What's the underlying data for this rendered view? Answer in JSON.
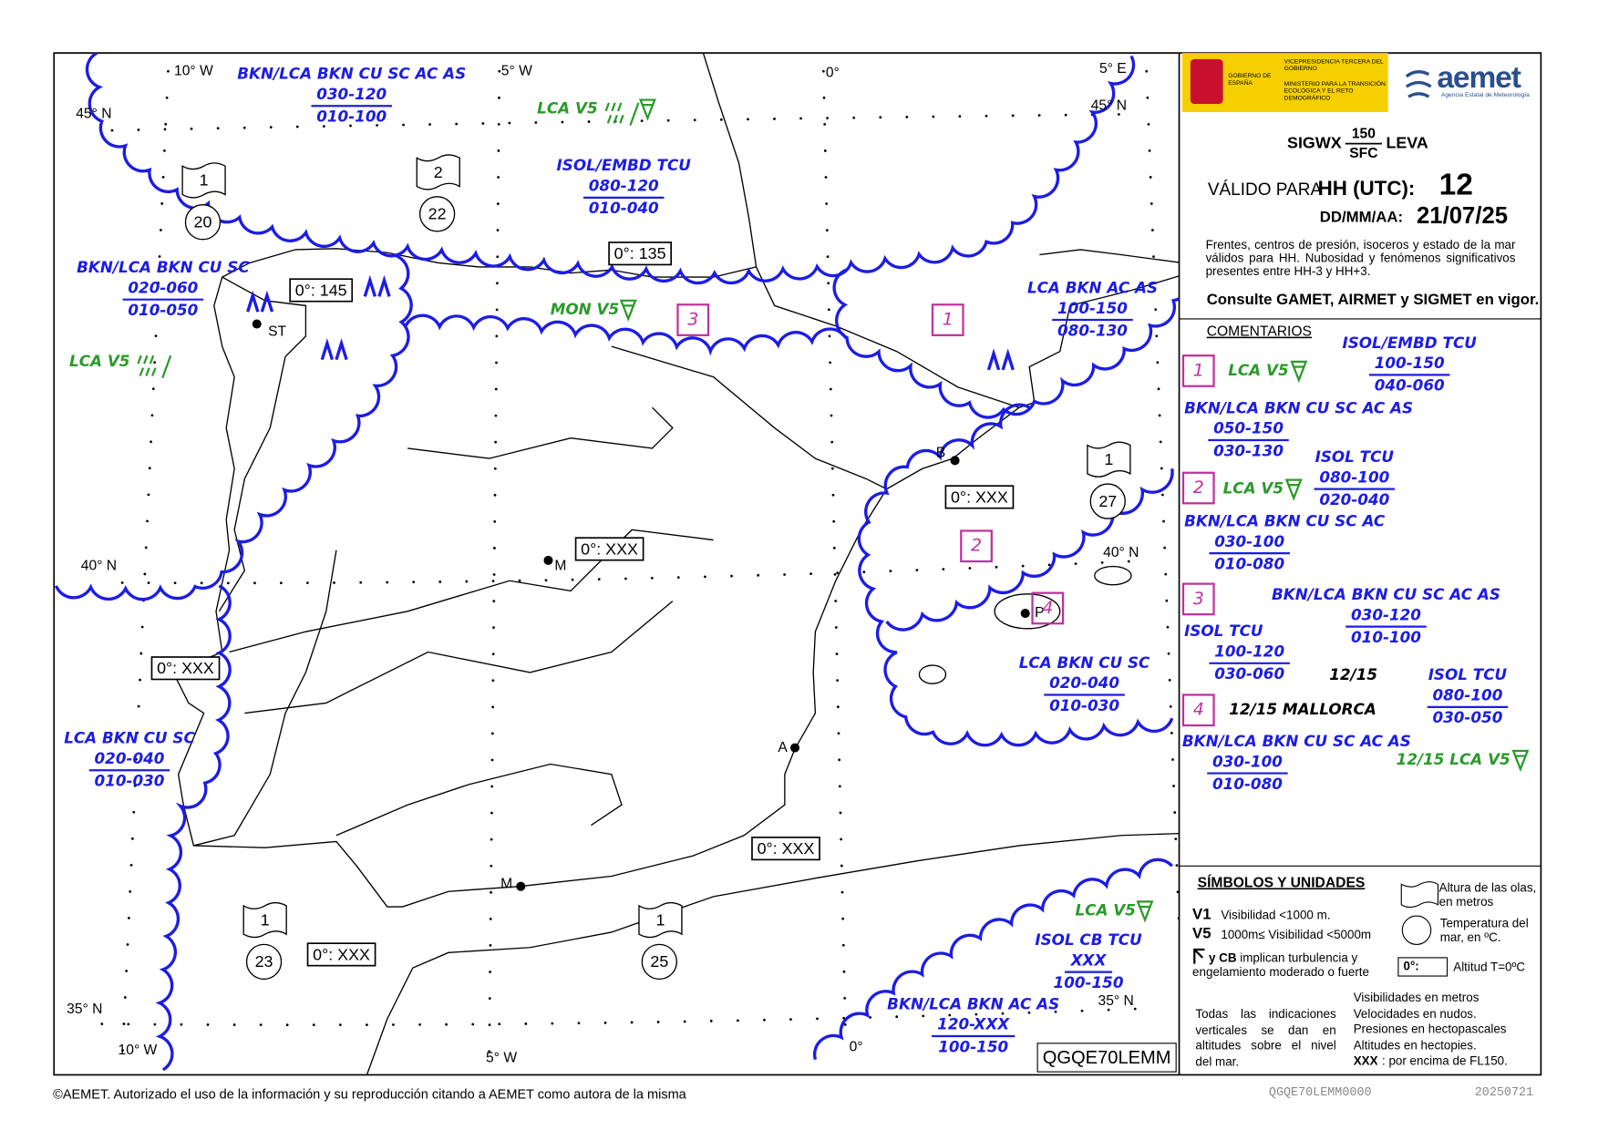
{
  "map": {
    "graticule": [
      "10° W",
      "5° W",
      "0°",
      "5° E",
      "45° N",
      "45° N",
      "40° N",
      "40° N",
      "35° N",
      "35° N",
      "10° W",
      "5° W",
      "0°"
    ],
    "clouds": [
      {
        "type": "BKN/LCA BKN CU SC AC AS",
        "top": "030-120",
        "base": "010-100"
      },
      {
        "type": "ISOL/EMBD TCU",
        "top": "080-120",
        "base": "010-040"
      },
      {
        "type": "BKN/LCA BKN CU SC",
        "top": "020-060",
        "base": "010-050"
      },
      {
        "type": "LCA BKN AC AS",
        "top": "100-150",
        "base": "080-130"
      },
      {
        "type": "LCA BKN CU SC",
        "top": "020-040",
        "base": "010-030"
      },
      {
        "type": "LCA BKN CU SC",
        "top": "020-040",
        "base": "010-030"
      },
      {
        "type": "ISOL CB TCU",
        "top": "XXX",
        "base": "100-150"
      },
      {
        "type": "BKN/LCA BKN AC AS",
        "top": "120-XXX",
        "base": "100-150"
      }
    ],
    "weather": [
      "LCA V5",
      "LCA V5",
      "MON V5",
      "LCA V5"
    ],
    "freezing_levels": [
      "0°: 135",
      "0°: 145",
      "0°: XXX",
      "0°: XXX",
      "0°: XXX",
      "0°: XXX",
      "0°: XXX"
    ],
    "sea_state": [
      {
        "wave": "1",
        "temperature": "20"
      },
      {
        "wave": "2",
        "temperature": "22"
      },
      {
        "wave": "1",
        "temperature": "27"
      },
      {
        "wave": "1",
        "temperature": "23"
      },
      {
        "wave": "1",
        "temperature": "25"
      }
    ],
    "places": [
      "ST",
      "M",
      "B",
      "P",
      "A",
      "M"
    ],
    "areas": [
      "3",
      "1",
      "2",
      "4"
    ],
    "chart_id": "QGQE70LEMM"
  },
  "panel": {
    "header": {
      "government": "GOBIERNO DE ESPAÑA",
      "vice": "VICEPRESIDENCIA TERCERA DEL GOBIERNO",
      "ministry": "MINISTERIO PARA LA TRANSICIÓN ECOLÓGICA Y EL RETO DEMOGRÁFICO",
      "brand": "aemet",
      "agency": "Agencia Estatal de Meteorología"
    },
    "title": {
      "product": "SIGWX",
      "upper": "150",
      "lower": "SFC",
      "region": "LEVA"
    },
    "validity": {
      "label": "VÁLIDO PARA",
      "hour_label": "HH (UTC):",
      "hour": "12",
      "date_label": "DD/MM/AA:",
      "date": "21/07/25"
    },
    "note": "Frentes, centros de presión, isoceros y estado de la mar válidos para HH. Nubosidad y fenómenos significativos presentes entre HH-3 y HH+3.",
    "notice": "Consulte GAMET, AIRMET y SIGMET en vigor.",
    "comments": {
      "title": "COMENTARIOS",
      "items": [
        {
          "area": "1",
          "weather": "LCA V5",
          "clouds": [
            {
              "type": "ISOL/EMBD TCU",
              "top": "100-150",
              "base": "040-060"
            },
            {
              "type": "BKN/LCA BKN CU SC AC AS",
              "top": "050-150",
              "base": "030-130"
            }
          ]
        },
        {
          "area": "2",
          "weather": "LCA V5",
          "clouds": [
            {
              "type": "ISOL TCU",
              "top": "080-100",
              "base": "020-040"
            },
            {
              "type": "BKN/LCA BKN CU SC AC",
              "top": "030-100",
              "base": "010-080"
            }
          ]
        },
        {
          "area": "3",
          "clouds": [
            {
              "type": "BKN/LCA BKN CU SC AC AS",
              "top": "030-120",
              "base": "010-100"
            },
            {
              "type": "ISOL TCU",
              "top": "100-120",
              "base": "030-060"
            }
          ]
        },
        {
          "area": "4",
          "label": "12/15 MALLORCA",
          "time": "12/15",
          "weather": "12/15 LCA V5",
          "clouds": [
            {
              "type": "ISOL TCU",
              "top": "080-100",
              "base": "030-050"
            },
            {
              "type": "BKN/LCA BKN CU SC AC AS",
              "top": "030-100",
              "base": "010-080"
            }
          ]
        }
      ]
    },
    "symbols": {
      "title": "SÍMBOLOS Y UNIDADES",
      "v1": "V1",
      "v1_text": "Visibilidad <1000 m.",
      "v5": "V5",
      "v5_text": "1000m≤ Visibilidad <5000m",
      "cb": "y CB",
      "cb_text": "implican turbulencia y engelamiento moderado o fuerte",
      "wave": "Altura de las olas, en metros",
      "temperature": "Temperatura del mar, en ºC.",
      "freezing": "0°:",
      "freezing_text": "Altitud T=0ºC",
      "vertical": "Todas las indicaciones verticales se dan en altitudes sobre el nivel del mar.",
      "units": [
        "Visibilidades en metros",
        "Velocidades en nudos.",
        "Presiones en hectopascales",
        "Altitudes en hectopies."
      ],
      "xxx": "XXX",
      "xxx_text": ": por encima de FL150."
    }
  },
  "footer": {
    "copyright": "©AEMET. Autorizado el uso de la información y su reproducción citando a AEMET como autora de la misma",
    "product_code": "QGQE70LEMM0000",
    "date": "20250721"
  }
}
